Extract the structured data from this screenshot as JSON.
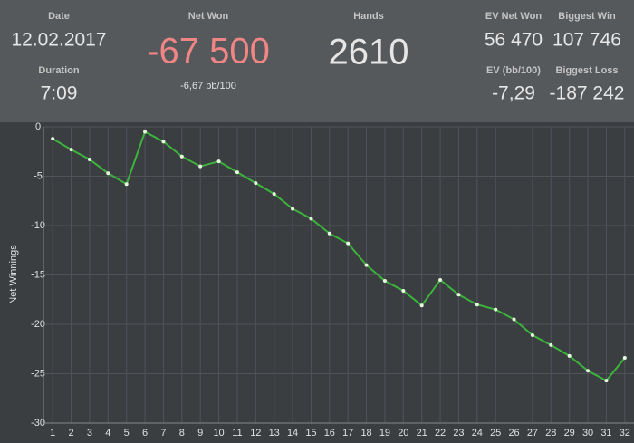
{
  "header": {
    "date": {
      "label": "Date",
      "value": "12.02.2017"
    },
    "duration": {
      "label": "Duration",
      "value": "7:09"
    },
    "net_won": {
      "label": "Net Won",
      "value": "-67 500",
      "sub": "-6,67 bb/100"
    },
    "hands": {
      "label": "Hands",
      "value": "2610"
    },
    "ev_net_won": {
      "label": "EV Net Won",
      "value": "56 470"
    },
    "biggest_win": {
      "label": "Biggest Win",
      "value": "107 746"
    },
    "ev_bb": {
      "label": "EV (bb/100)",
      "value": "-7,29"
    },
    "biggest_loss": {
      "label": "Biggest Loss",
      "value": "-187 242"
    }
  },
  "chart_data": {
    "type": "line",
    "y_label": "Net Winnings",
    "x": [
      1,
      2,
      3,
      4,
      5,
      6,
      7,
      8,
      9,
      10,
      11,
      12,
      13,
      14,
      15,
      16,
      17,
      18,
      19,
      20,
      21,
      22,
      23,
      24,
      25,
      26,
      27,
      28,
      29,
      30,
      31,
      32
    ],
    "values": [
      -1.2,
      -2.3,
      -3.3,
      -4.7,
      -5.8,
      -0.5,
      -1.5,
      -3.0,
      -4.0,
      -3.5,
      -4.6,
      -5.7,
      -6.8,
      -8.3,
      -9.3,
      -10.8,
      -11.8,
      -14.0,
      -15.6,
      -16.6,
      -18.1,
      -15.5,
      -17.0,
      -18.0,
      -18.5,
      -19.5,
      -21.1,
      -22.1,
      -23.2,
      -24.7,
      -25.7,
      -23.4
    ],
    "color": "#3cb33c",
    "marker_color": "#e8f8e0",
    "xlim": [
      0.5,
      32.5
    ],
    "xticks": [
      1,
      2,
      3,
      4,
      5,
      6,
      7,
      8,
      9,
      10,
      11,
      12,
      13,
      14,
      15,
      16,
      17,
      18,
      19,
      20,
      21,
      22,
      23,
      24,
      25,
      26,
      27,
      28,
      29,
      30,
      31,
      32
    ],
    "ylim": [
      -30,
      0
    ],
    "yticks": [
      0,
      -5,
      -10,
      -15,
      -20,
      -25,
      -30
    ],
    "grid": true
  }
}
